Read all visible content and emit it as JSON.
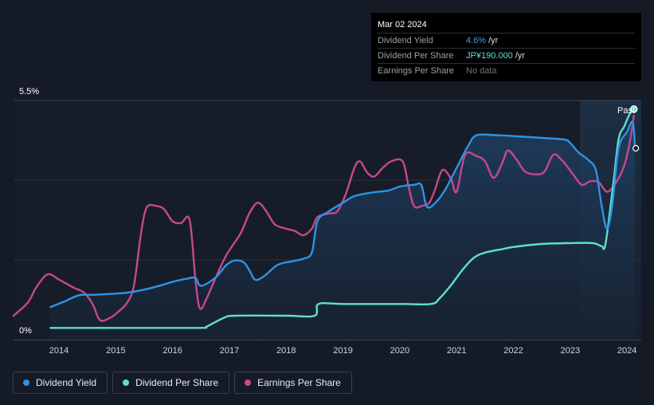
{
  "tooltip": {
    "date": "Mar 02 2024",
    "rows": [
      {
        "label": "Dividend Yield",
        "value": "4.6%",
        "unit": "/yr",
        "color": "#3a9ef0"
      },
      {
        "label": "Dividend Per Share",
        "value": "JP¥190.000",
        "unit": "/yr",
        "color": "#5ee0cc"
      },
      {
        "label": "Earnings Per Share",
        "value": "No data",
        "unit": "",
        "color": "#6e747e"
      }
    ]
  },
  "legend": [
    {
      "label": "Dividend Yield",
      "color": "#2f93e6"
    },
    {
      "label": "Dividend Per Share",
      "color": "#5ee0cc"
    },
    {
      "label": "Earnings Per Share",
      "color": "#c8478c"
    }
  ],
  "chart_data": {
    "type": "line",
    "title": "",
    "past_label": "Past",
    "y_tick_labels": [
      "5.5%",
      "0%"
    ],
    "ylim": [
      0,
      5.5
    ],
    "xlim": [
      2013.2,
      2024.25
    ],
    "x_tick_labels": [
      "2014",
      "2015",
      "2016",
      "2017",
      "2018",
      "2019",
      "2020",
      "2021",
      "2022",
      "2023",
      "2024"
    ],
    "x_ticks": [
      2014,
      2015,
      2016,
      2017,
      2018,
      2019,
      2020,
      2021,
      2022,
      2023,
      2024
    ],
    "forecast_start": 2023.17,
    "series": [
      {
        "name": "Dividend Yield",
        "unit": "%",
        "color": "#2f93e6",
        "points": [
          [
            2013.85,
            0.75
          ],
          [
            2014.1,
            0.88
          ],
          [
            2014.35,
            1.02
          ],
          [
            2014.6,
            1.03
          ],
          [
            2014.9,
            1.05
          ],
          [
            2015.2,
            1.08
          ],
          [
            2015.5,
            1.15
          ],
          [
            2015.8,
            1.25
          ],
          [
            2016.0,
            1.33
          ],
          [
            2016.25,
            1.4
          ],
          [
            2016.4,
            1.42
          ],
          [
            2016.5,
            1.24
          ],
          [
            2016.75,
            1.42
          ],
          [
            2016.95,
            1.72
          ],
          [
            2017.1,
            1.82
          ],
          [
            2017.25,
            1.78
          ],
          [
            2017.35,
            1.6
          ],
          [
            2017.45,
            1.38
          ],
          [
            2017.6,
            1.45
          ],
          [
            2017.85,
            1.72
          ],
          [
            2018.1,
            1.8
          ],
          [
            2018.3,
            1.86
          ],
          [
            2018.45,
            2.0
          ],
          [
            2018.55,
            2.72
          ],
          [
            2018.75,
            2.95
          ],
          [
            2019.0,
            3.15
          ],
          [
            2019.2,
            3.3
          ],
          [
            2019.5,
            3.38
          ],
          [
            2019.8,
            3.43
          ],
          [
            2020.0,
            3.52
          ],
          [
            2020.25,
            3.56
          ],
          [
            2020.38,
            3.55
          ],
          [
            2020.48,
            3.05
          ],
          [
            2020.65,
            3.18
          ],
          [
            2020.8,
            3.45
          ],
          [
            2021.0,
            3.95
          ],
          [
            2021.2,
            4.45
          ],
          [
            2021.35,
            4.7
          ],
          [
            2021.7,
            4.7
          ],
          [
            2022.0,
            4.68
          ],
          [
            2022.5,
            4.64
          ],
          [
            2022.9,
            4.6
          ],
          [
            2023.0,
            4.52
          ],
          [
            2023.15,
            4.3
          ],
          [
            2023.3,
            4.15
          ],
          [
            2023.45,
            3.9
          ],
          [
            2023.55,
            3.1
          ],
          [
            2023.65,
            2.55
          ],
          [
            2023.75,
            3.2
          ],
          [
            2023.85,
            4.4
          ],
          [
            2024.0,
            4.78
          ],
          [
            2024.1,
            5.0
          ],
          [
            2024.14,
            4.4
          ]
        ]
      },
      {
        "name": "Dividend Per Share",
        "unit": "JP¥",
        "color": "#5ee0cc",
        "points": [
          [
            2013.85,
            0.27
          ],
          [
            2014.5,
            0.27
          ],
          [
            2015.5,
            0.27
          ],
          [
            2016.5,
            0.27
          ],
          [
            2016.6,
            0.3
          ],
          [
            2016.9,
            0.5
          ],
          [
            2017.1,
            0.55
          ],
          [
            2018.0,
            0.55
          ],
          [
            2018.5,
            0.55
          ],
          [
            2018.57,
            0.82
          ],
          [
            2019.0,
            0.82
          ],
          [
            2020.0,
            0.82
          ],
          [
            2020.55,
            0.82
          ],
          [
            2020.7,
            0.95
          ],
          [
            2020.9,
            1.25
          ],
          [
            2021.1,
            1.6
          ],
          [
            2021.3,
            1.88
          ],
          [
            2021.5,
            2.0
          ],
          [
            2021.8,
            2.08
          ],
          [
            2022.0,
            2.13
          ],
          [
            2022.5,
            2.2
          ],
          [
            2023.0,
            2.22
          ],
          [
            2023.4,
            2.22
          ],
          [
            2023.55,
            2.15
          ],
          [
            2023.62,
            2.2
          ],
          [
            2023.75,
            3.5
          ],
          [
            2023.85,
            4.6
          ],
          [
            2023.95,
            4.9
          ],
          [
            2024.05,
            5.2
          ],
          [
            2024.12,
            5.3
          ]
        ]
      },
      {
        "name": "Earnings Per Share",
        "unit": "JP¥",
        "color": "#c8478c",
        "points": [
          [
            2013.2,
            0.55
          ],
          [
            2013.45,
            0.85
          ],
          [
            2013.6,
            1.2
          ],
          [
            2013.8,
            1.5
          ],
          [
            2014.0,
            1.38
          ],
          [
            2014.25,
            1.2
          ],
          [
            2014.45,
            1.07
          ],
          [
            2014.6,
            0.8
          ],
          [
            2014.72,
            0.45
          ],
          [
            2014.9,
            0.5
          ],
          [
            2015.05,
            0.65
          ],
          [
            2015.2,
            0.85
          ],
          [
            2015.32,
            1.25
          ],
          [
            2015.45,
            2.5
          ],
          [
            2015.55,
            3.05
          ],
          [
            2015.72,
            3.07
          ],
          [
            2015.85,
            3.0
          ],
          [
            2016.0,
            2.72
          ],
          [
            2016.15,
            2.68
          ],
          [
            2016.3,
            2.75
          ],
          [
            2016.4,
            1.4
          ],
          [
            2016.48,
            0.72
          ],
          [
            2016.6,
            0.95
          ],
          [
            2016.75,
            1.4
          ],
          [
            2016.95,
            1.95
          ],
          [
            2017.2,
            2.45
          ],
          [
            2017.35,
            2.9
          ],
          [
            2017.5,
            3.15
          ],
          [
            2017.65,
            2.95
          ],
          [
            2017.8,
            2.65
          ],
          [
            2018.0,
            2.55
          ],
          [
            2018.15,
            2.5
          ],
          [
            2018.3,
            2.4
          ],
          [
            2018.45,
            2.55
          ],
          [
            2018.55,
            2.82
          ],
          [
            2018.75,
            2.9
          ],
          [
            2018.9,
            2.95
          ],
          [
            2019.05,
            3.35
          ],
          [
            2019.2,
            3.95
          ],
          [
            2019.3,
            4.1
          ],
          [
            2019.42,
            3.85
          ],
          [
            2019.55,
            3.75
          ],
          [
            2019.7,
            3.95
          ],
          [
            2019.85,
            4.1
          ],
          [
            2020.05,
            4.1
          ],
          [
            2020.15,
            3.55
          ],
          [
            2020.25,
            3.07
          ],
          [
            2020.4,
            3.08
          ],
          [
            2020.52,
            3.15
          ],
          [
            2020.62,
            3.45
          ],
          [
            2020.75,
            3.9
          ],
          [
            2020.9,
            3.7
          ],
          [
            2021.0,
            3.4
          ],
          [
            2021.15,
            4.25
          ],
          [
            2021.35,
            4.22
          ],
          [
            2021.5,
            4.1
          ],
          [
            2021.65,
            3.72
          ],
          [
            2021.8,
            4.05
          ],
          [
            2021.9,
            4.35
          ],
          [
            2022.05,
            4.15
          ],
          [
            2022.2,
            3.87
          ],
          [
            2022.4,
            3.8
          ],
          [
            2022.55,
            3.87
          ],
          [
            2022.7,
            4.25
          ],
          [
            2022.85,
            4.13
          ],
          [
            2023.05,
            3.8
          ],
          [
            2023.2,
            3.56
          ],
          [
            2023.35,
            3.64
          ],
          [
            2023.5,
            3.62
          ],
          [
            2023.65,
            3.4
          ],
          [
            2023.8,
            3.6
          ],
          [
            2023.95,
            4.0
          ],
          [
            2024.05,
            4.55
          ],
          [
            2024.12,
            5.15
          ]
        ]
      }
    ],
    "grid": true,
    "legend_position": "bottom-left"
  }
}
